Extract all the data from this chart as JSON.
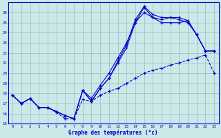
{
  "xlabel": "Graphe des températures (°c)",
  "ylim": [
    15,
    27
  ],
  "xlim": [
    -0.5,
    23.5
  ],
  "yticks": [
    15,
    16,
    17,
    18,
    19,
    20,
    21,
    22,
    23,
    24,
    25,
    26
  ],
  "xticks": [
    0,
    1,
    2,
    3,
    4,
    5,
    6,
    7,
    8,
    9,
    10,
    11,
    12,
    13,
    14,
    15,
    16,
    17,
    18,
    19,
    20,
    21,
    22,
    23
  ],
  "bg_color": "#cce8e8",
  "line_color": "#0000cc",
  "grid_color": "#99bbbb",
  "s1_x": [
    0,
    1,
    2,
    3,
    4,
    5,
    6,
    7,
    8,
    9,
    10,
    11,
    12,
    13,
    14,
    15,
    16,
    17,
    18,
    19,
    20,
    21,
    22,
    23
  ],
  "s1_y": [
    17.8,
    17.0,
    17.5,
    16.6,
    16.6,
    16.1,
    15.5,
    15.5,
    17.4,
    17.2,
    17.8,
    18.2,
    18.5,
    19.0,
    19.5,
    20.0,
    20.3,
    20.5,
    20.8,
    21.0,
    21.3,
    21.5,
    21.8,
    20.0
  ],
  "s2_x": [
    0,
    1,
    2,
    3,
    4,
    5,
    6,
    7,
    8,
    9,
    10,
    11,
    12,
    13,
    14,
    15,
    16,
    17,
    18,
    19,
    20,
    21,
    22,
    23
  ],
  "s2_y": [
    17.8,
    17.0,
    17.5,
    16.6,
    16.6,
    16.2,
    15.8,
    15.5,
    18.3,
    17.2,
    18.5,
    19.5,
    21.0,
    22.5,
    25.0,
    26.5,
    25.5,
    25.3,
    25.5,
    25.3,
    25.0,
    23.8,
    22.2,
    22.2
  ],
  "s3_x": [
    0,
    1,
    2,
    3,
    4,
    5,
    6,
    7,
    8,
    9,
    10,
    11,
    12,
    13,
    14,
    15,
    16,
    17,
    18,
    19,
    20,
    21,
    22,
    23
  ],
  "s3_y": [
    17.8,
    17.0,
    17.5,
    16.6,
    16.6,
    16.2,
    15.8,
    15.5,
    18.3,
    17.2,
    18.5,
    19.5,
    21.2,
    22.8,
    25.3,
    26.6,
    25.8,
    25.5,
    25.5,
    25.5,
    25.2,
    23.8,
    22.2,
    22.2
  ],
  "s4_x": [
    0,
    1,
    2,
    3,
    4,
    5,
    6,
    7,
    8,
    9,
    10,
    11,
    12,
    13,
    14,
    15,
    16,
    17,
    18,
    19,
    20,
    21,
    22,
    23
  ],
  "s4_y": [
    17.8,
    17.0,
    17.5,
    16.6,
    16.6,
    16.2,
    15.8,
    15.5,
    18.3,
    17.5,
    18.8,
    20.0,
    21.5,
    23.0,
    25.0,
    26.0,
    25.5,
    25.0,
    25.0,
    25.0,
    25.2,
    23.8,
    22.2,
    22.2
  ]
}
